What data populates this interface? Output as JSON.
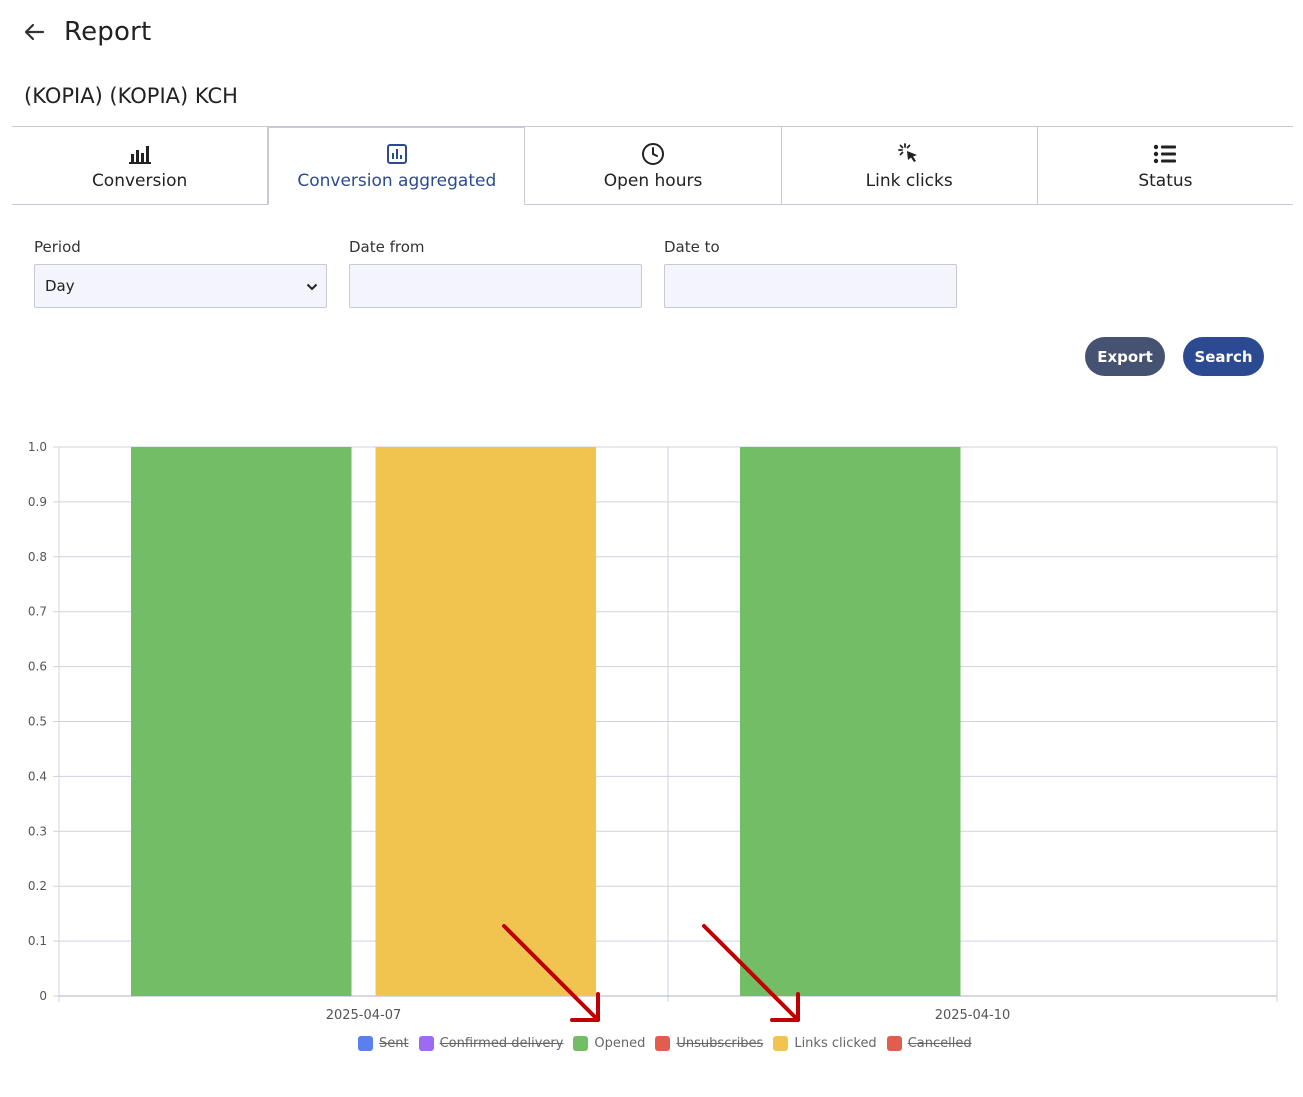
{
  "header": {
    "title": "Report"
  },
  "campaign_name": "(KOPIA) (KOPIA) KCH",
  "tabs": [
    {
      "label": "Conversion",
      "icon": "bar-chart-icon"
    },
    {
      "label": "Conversion aggregated",
      "icon": "chart-box-icon",
      "active": true
    },
    {
      "label": "Open hours",
      "icon": "clock-icon"
    },
    {
      "label": "Link clicks",
      "icon": "pointer-click-icon"
    },
    {
      "label": "Status",
      "icon": "list-icon"
    }
  ],
  "filters": {
    "period_label": "Period",
    "period_value": "Day",
    "date_from_label": "Date from",
    "date_from_value": "",
    "date_to_label": "Date to",
    "date_to_value": ""
  },
  "buttons": {
    "export": "Export",
    "search": "Search"
  },
  "colors": {
    "accent": "#2b4a91",
    "export_bg": "#455272",
    "arrow": "#c00000"
  },
  "chart_data": {
    "type": "bar",
    "categories": [
      "2025-04-07",
      "2025-04-10"
    ],
    "ylim": [
      0,
      1
    ],
    "yticks": [
      "0",
      "0.1",
      "0.2",
      "0.3",
      "0.4",
      "0.5",
      "0.6",
      "0.7",
      "0.8",
      "0.9",
      "1.0"
    ],
    "grid": true,
    "legend_position": "bottom",
    "series": [
      {
        "name": "Sent",
        "color": "#5b7ff0",
        "hidden": true,
        "values": [
          null,
          null
        ]
      },
      {
        "name": "Confirmed delivery",
        "color": "#9b6bf0",
        "hidden": true,
        "values": [
          null,
          null
        ]
      },
      {
        "name": "Opened",
        "color": "#72bd66",
        "hidden": false,
        "values": [
          1,
          1
        ]
      },
      {
        "name": "Unsubscribes",
        "color": "#e35d4f",
        "hidden": true,
        "values": [
          null,
          null
        ]
      },
      {
        "name": "Links clicked",
        "color": "#f0c44e",
        "hidden": false,
        "values": [
          1,
          0
        ]
      },
      {
        "name": "Cancelled",
        "color": "#e35d4f",
        "hidden": true,
        "values": [
          null,
          null
        ]
      }
    ]
  }
}
